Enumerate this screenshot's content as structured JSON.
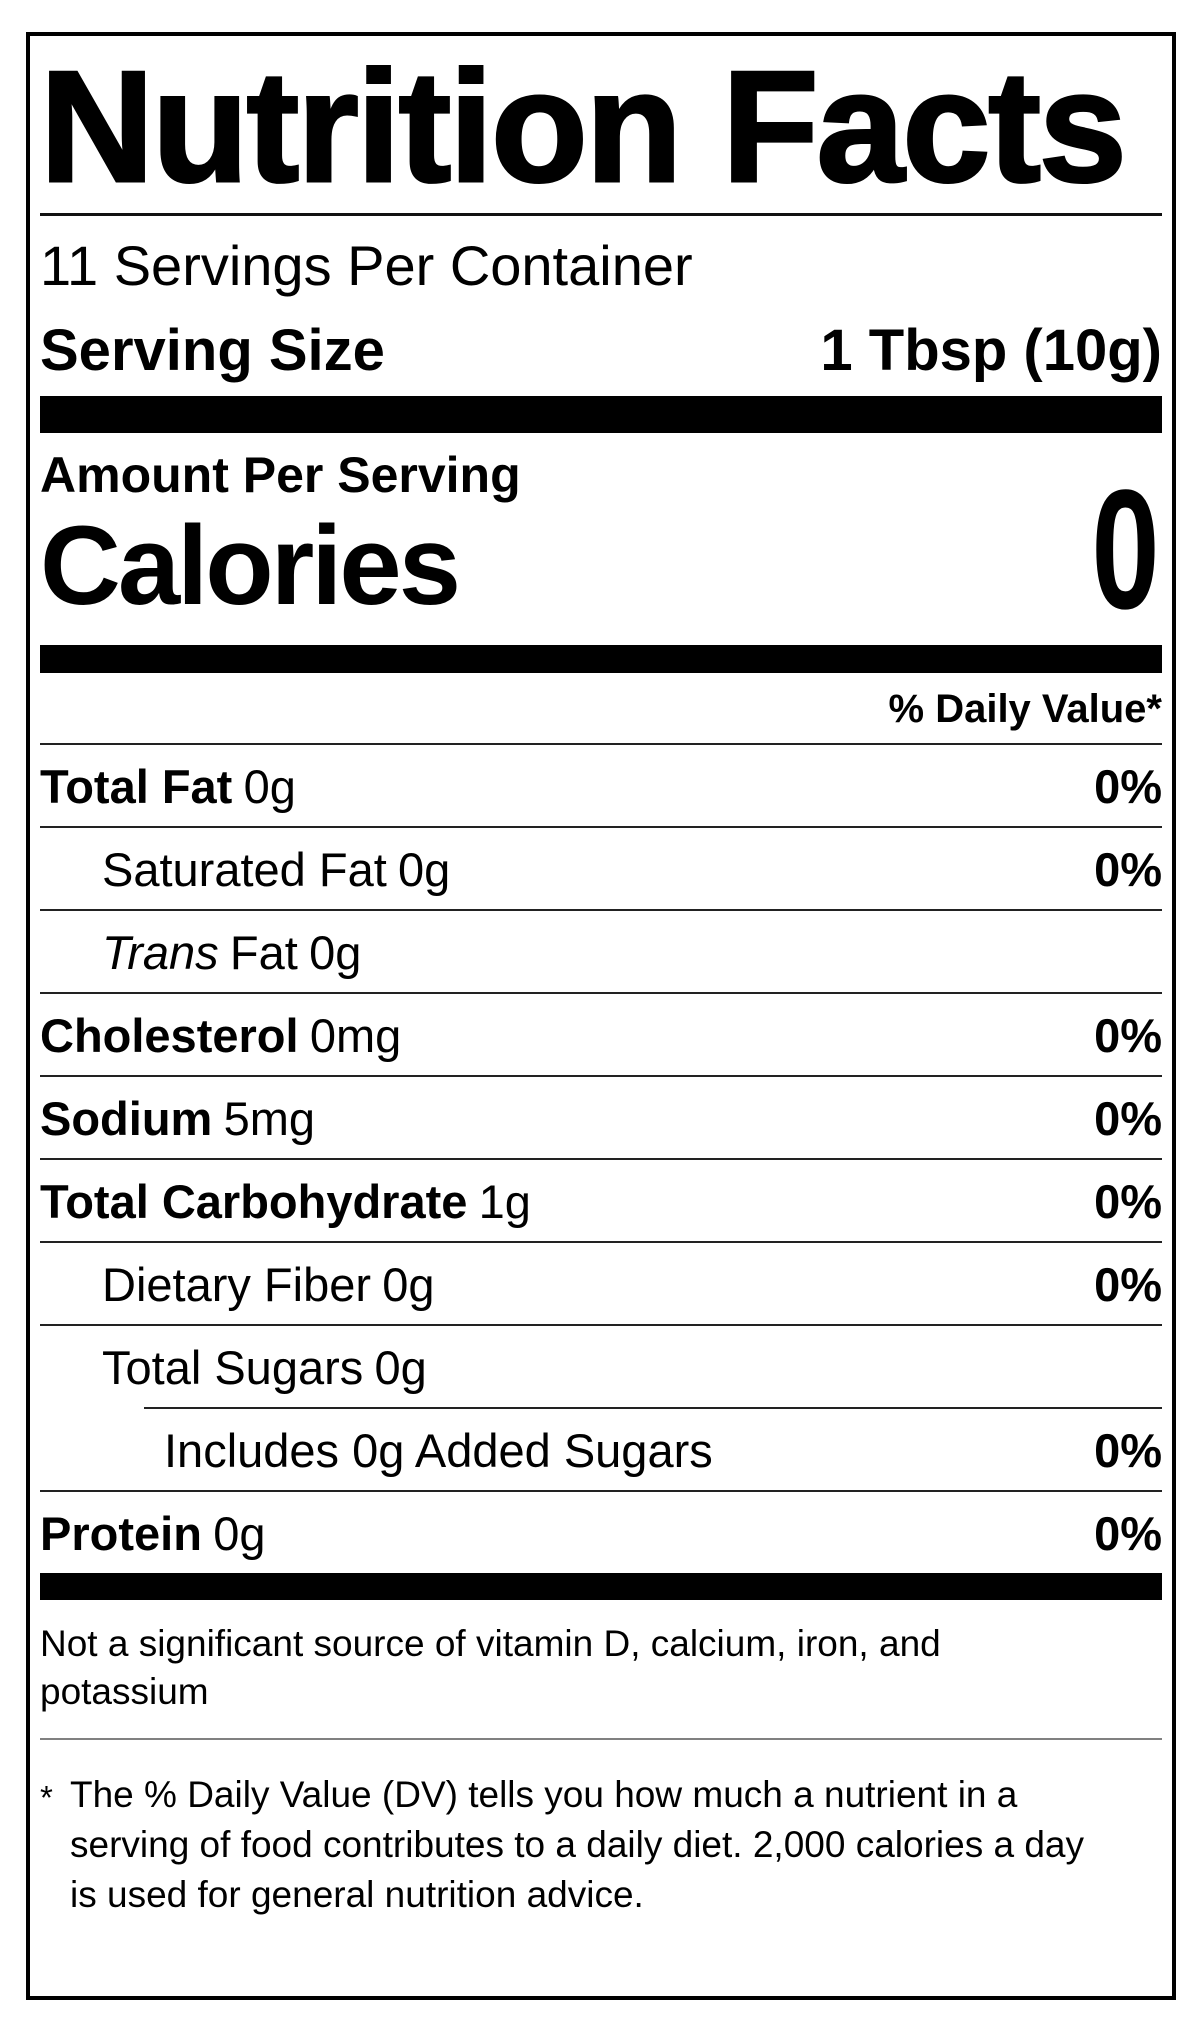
{
  "nutrition_label": {
    "title": "Nutrition Facts",
    "servings_per_container": "11 Servings Per Container",
    "serving_size": {
      "label": "Serving Size",
      "value": "1 Tbsp (10g)"
    },
    "amount_per_serving_label": "Amount Per Serving",
    "calories": {
      "label": "Calories",
      "value": "0"
    },
    "daily_value_header": "% Daily Value*",
    "nutrient_rows": [
      {
        "name": "Total Fat",
        "amount": "0g",
        "daily_value": "0%",
        "indent": 0,
        "bold": true
      },
      {
        "name": "Saturated Fat",
        "amount": "0g",
        "daily_value": "0%",
        "indent": 1,
        "bold": false
      },
      {
        "name_italic": "Trans",
        "name": "Fat",
        "amount": "0g",
        "daily_value": "",
        "indent": 1,
        "bold": false
      },
      {
        "name": "Cholesterol",
        "amount": "0mg",
        "daily_value": "0%",
        "indent": 0,
        "bold": true
      },
      {
        "name": "Sodium",
        "amount": "5mg",
        "daily_value": "0%",
        "indent": 0,
        "bold": true
      },
      {
        "name": "Total Carbohydrate",
        "amount": "1g",
        "daily_value": "0%",
        "indent": 0,
        "bold": true
      },
      {
        "name": "Dietary Fiber",
        "amount": "0g",
        "daily_value": "0%",
        "indent": 1,
        "bold": false
      },
      {
        "name": "Total Sugars",
        "amount": "0g",
        "daily_value": "",
        "indent": 1,
        "bold": false
      },
      {
        "name": "Includes 0g Added Sugars",
        "amount": "",
        "daily_value": "0%",
        "indent": 2,
        "bold": false,
        "partial_rule": true
      },
      {
        "name": "Protein",
        "amount": "0g",
        "daily_value": "0%",
        "indent": 0,
        "bold": true
      }
    ],
    "not_significant_note": "Not a significant source of vitamin D, calcium, iron, and potassium",
    "footnote": {
      "marker": "*",
      "text": "The % Daily Value (DV) tells you how much a nutrient in a serving of food contributes to a daily diet. 2,000 calories a day is used for general nutrition advice."
    }
  },
  "colors": {
    "background": "#ffffff",
    "text": "#000000",
    "bar": "#000000",
    "hairline": "#222222",
    "light_rule": "#808080"
  }
}
